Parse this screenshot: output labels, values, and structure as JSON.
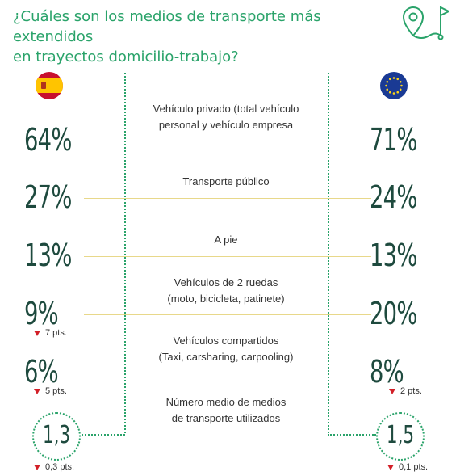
{
  "title": {
    "line1": "¿Cuáles son los medios de transporte más extendidos",
    "line2": "en trayectos domicilio-trabajo?"
  },
  "icons": {
    "route": "route-map-pin-flag-icon",
    "left_flag": "spain-flag-icon",
    "right_flag": "eu-flag-icon"
  },
  "colors": {
    "accent_green": "#2aa36a",
    "number_dark_green": "#1e4a3e",
    "guide_line_yellow": "#e8d88a",
    "decrease_red": "#d21f27"
  },
  "rows": [
    {
      "label_lines": [
        "Vehículo privado (total vehículo",
        "personal y vehículo empresa"
      ],
      "spain": "64%",
      "eu": "71%"
    },
    {
      "label_lines": [
        "Transporte público"
      ],
      "spain": "27%",
      "eu": "24%"
    },
    {
      "label_lines": [
        "A pie"
      ],
      "spain": "13%",
      "eu": "13%"
    },
    {
      "label_lines": [
        "Vehículos de 2 ruedas",
        "(moto, bicicleta, patinete)"
      ],
      "spain": "9%",
      "spain_delta": "7 pts.",
      "eu": "20%"
    },
    {
      "label_lines": [
        "Vehículos compartidos",
        "(Taxi, carsharing, carpooling)"
      ],
      "spain": "6%",
      "spain_delta": "5 pts.",
      "eu": "8%",
      "eu_delta": "2 pts."
    },
    {
      "label_lines": [
        "Número medio de medios",
        "de transporte utilizados"
      ],
      "spain": "1,3",
      "spain_delta": "0,3 pts.",
      "eu": "1,5",
      "eu_delta": "0,1 pts."
    }
  ]
}
